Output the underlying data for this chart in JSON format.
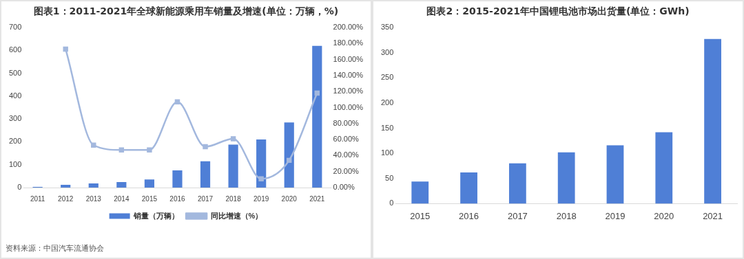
{
  "chart_data": [
    {
      "type": "bar",
      "title": "图表1：2011-2021年全球新能源乘用车销量及增速(单位：万辆，%)",
      "categories": [
        "2011",
        "2012",
        "2013",
        "2014",
        "2015",
        "2016",
        "2017",
        "2018",
        "2019",
        "2020",
        "2021"
      ],
      "series": [
        {
          "name": "销量（万辆）",
          "type": "bar",
          "color": "#4f7fd6",
          "values": [
            3,
            12,
            18,
            24,
            35,
            75,
            115,
            188,
            210,
            285,
            620
          ]
        },
        {
          "name": "同比增速（%）",
          "type": "line",
          "axis": "y2",
          "color": "#a3b8de",
          "marker": "square",
          "values": [
            null,
            173,
            53,
            47,
            47,
            107,
            51,
            61,
            11,
            34,
            118
          ]
        }
      ],
      "ylim": [
        0,
        700
      ],
      "yticks": [
        0,
        100,
        200,
        300,
        400,
        500,
        600,
        700
      ],
      "y2lim": [
        0,
        200
      ],
      "y2ticks": [
        {
          "value": 0,
          "label": "0.00%"
        },
        {
          "value": 20,
          "label": "20.00%"
        },
        {
          "value": 40,
          "label": "40.00%"
        },
        {
          "value": 60,
          "label": "60.00%"
        },
        {
          "value": 80,
          "label": "80.00%"
        },
        {
          "value": 100,
          "label": "100.00%"
        },
        {
          "value": 120,
          "label": "120.00%"
        },
        {
          "value": 140,
          "label": "140.00%"
        },
        {
          "value": 160,
          "label": "160.00%"
        },
        {
          "value": 180,
          "label": "180.00%"
        },
        {
          "value": 200,
          "label": "200.00%"
        }
      ],
      "grid": false,
      "legend": "bottom",
      "annotations": [
        "资料来源：中国汽车流通协会"
      ]
    },
    {
      "type": "bar",
      "title": "图表2：2015-2021年中国锂电池市场出货量(单位：GWh)",
      "categories": [
        "2015",
        "2016",
        "2017",
        "2018",
        "2019",
        "2020",
        "2021"
      ],
      "values": [
        44,
        62,
        80,
        102,
        116,
        142,
        327
      ],
      "color": "#4f7fd6",
      "ylim": [
        0,
        350
      ],
      "yticks": [
        0,
        50,
        100,
        150,
        200,
        250,
        300,
        350
      ],
      "grid": false
    }
  ]
}
